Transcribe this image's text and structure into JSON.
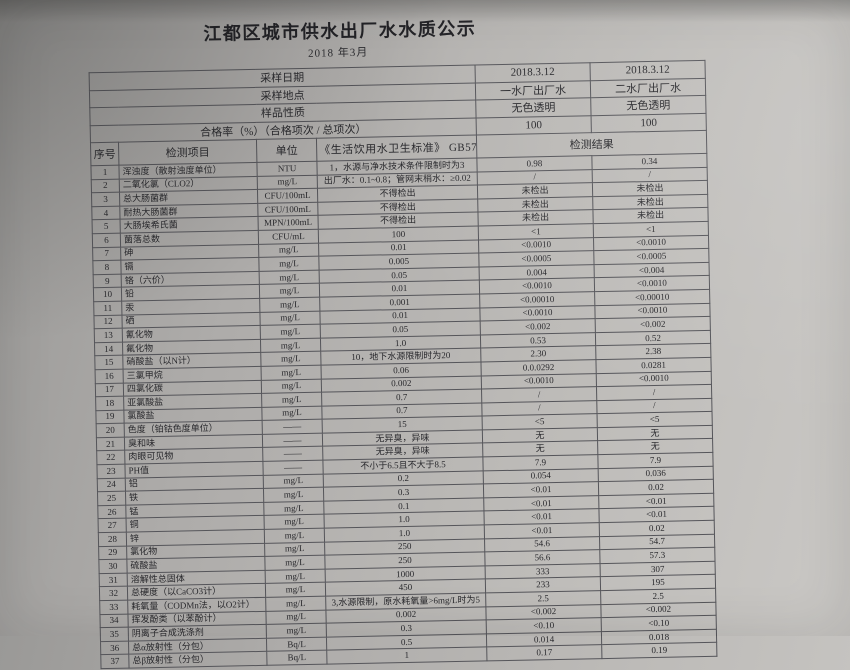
{
  "title": "江都区城市供水出厂水水质公示",
  "subtitle": "2018 年3月",
  "meta_rows": [
    {
      "label": "采样日期",
      "values": [
        "2018.3.12",
        "2018.3.12"
      ]
    },
    {
      "label": "采样地点",
      "values": [
        "一水厂出厂水",
        "二水厂出厂水"
      ]
    },
    {
      "label": "样品性质",
      "values": [
        "无色透明",
        "无色透明"
      ]
    },
    {
      "label": "合格率（%）（合格项次 / 总项次）",
      "values": [
        "100",
        "100"
      ]
    }
  ],
  "columns": {
    "no": "序号",
    "item": "检测项目",
    "unit": "单位",
    "standard": "《生活饮用水卫生标准》 GB5749",
    "result": "检测结果"
  },
  "rows": [
    {
      "no": "1",
      "item": "浑浊度（散射浊度单位）",
      "unit": "NTU",
      "standard": "1，水源与净水技术条件限制时为3",
      "r1": "0.98",
      "r2": "0.34"
    },
    {
      "no": "2",
      "item": "二氧化氯（CLO2）",
      "unit": "mg/L",
      "standard": "出厂水：0.1~0.8；管网末梢水：≥0.02",
      "r1": "/",
      "r2": "/"
    },
    {
      "no": "3",
      "item": "总大肠菌群",
      "unit": "CFU/100mL",
      "standard": "不得检出",
      "r1": "未检出",
      "r2": "未检出"
    },
    {
      "no": "4",
      "item": "耐热大肠菌群",
      "unit": "CFU/100mL",
      "standard": "不得检出",
      "r1": "未检出",
      "r2": "未检出"
    },
    {
      "no": "5",
      "item": "大肠埃希氏菌",
      "unit": "MPN/100mL",
      "standard": "不得检出",
      "r1": "未检出",
      "r2": "未检出"
    },
    {
      "no": "6",
      "item": "菌落总数",
      "unit": "CFU/mL",
      "standard": "100",
      "r1": "<1",
      "r2": "<1"
    },
    {
      "no": "7",
      "item": "砷",
      "unit": "mg/L",
      "standard": "0.01",
      "r1": "<0.0010",
      "r2": "<0.0010"
    },
    {
      "no": "8",
      "item": "镉",
      "unit": "mg/L",
      "standard": "0.005",
      "r1": "<0.0005",
      "r2": "<0.0005"
    },
    {
      "no": "9",
      "item": "铬（六价）",
      "unit": "mg/L",
      "standard": "0.05",
      "r1": "0.004",
      "r2": "<0.004"
    },
    {
      "no": "10",
      "item": "铅",
      "unit": "mg/L",
      "standard": "0.01",
      "r1": "<0.0010",
      "r2": "<0.0010"
    },
    {
      "no": "11",
      "item": "汞",
      "unit": "mg/L",
      "standard": "0.001",
      "r1": "<0.00010",
      "r2": "<0.00010"
    },
    {
      "no": "12",
      "item": "硒",
      "unit": "mg/L",
      "standard": "0.01",
      "r1": "<0.0010",
      "r2": "<0.0010"
    },
    {
      "no": "13",
      "item": "氰化物",
      "unit": "mg/L",
      "standard": "0.05",
      "r1": "<0.002",
      "r2": "<0.002"
    },
    {
      "no": "14",
      "item": "氟化物",
      "unit": "mg/L",
      "standard": "1.0",
      "r1": "0.53",
      "r2": "0.52"
    },
    {
      "no": "15",
      "item": "硝酸盐（以N计）",
      "unit": "mg/L",
      "standard": "10，地下水源限制时为20",
      "r1": "2.30",
      "r2": "2.38"
    },
    {
      "no": "16",
      "item": "三氯甲烷",
      "unit": "mg/L",
      "standard": "0.06",
      "r1": "0.0.0292",
      "r2": "0.0281"
    },
    {
      "no": "17",
      "item": "四氯化碳",
      "unit": "mg/L",
      "standard": "0.002",
      "r1": "<0.0010",
      "r2": "<0.0010"
    },
    {
      "no": "18",
      "item": "亚氯酸盐",
      "unit": "mg/L",
      "standard": "0.7",
      "r1": "/",
      "r2": "/"
    },
    {
      "no": "19",
      "item": "氯酸盐",
      "unit": "mg/L",
      "standard": "0.7",
      "r1": "/",
      "r2": "/"
    },
    {
      "no": "20",
      "item": "色度（铂钴色度单位）",
      "unit": "——",
      "standard": "15",
      "r1": "<5",
      "r2": "<5"
    },
    {
      "no": "21",
      "item": "臭和味",
      "unit": "——",
      "standard": "无异臭，异味",
      "r1": "无",
      "r2": "无"
    },
    {
      "no": "22",
      "item": "肉眼可见物",
      "unit": "——",
      "standard": "无异臭，异味",
      "r1": "无",
      "r2": "无"
    },
    {
      "no": "23",
      "item": "PH值",
      "unit": "——",
      "standard": "不小于6.5且不大于8.5",
      "r1": "7.9",
      "r2": "7.9"
    },
    {
      "no": "24",
      "item": "铝",
      "unit": "mg/L",
      "standard": "0.2",
      "r1": "0.054",
      "r2": "0.036"
    },
    {
      "no": "25",
      "item": "铁",
      "unit": "mg/L",
      "standard": "0.3",
      "r1": "<0.01",
      "r2": "0.02"
    },
    {
      "no": "26",
      "item": "锰",
      "unit": "mg/L",
      "standard": "0.1",
      "r1": "<0.01",
      "r2": "<0.01"
    },
    {
      "no": "27",
      "item": "铜",
      "unit": "mg/L",
      "standard": "1.0",
      "r1": "<0.01",
      "r2": "<0.01"
    },
    {
      "no": "28",
      "item": "锌",
      "unit": "mg/L",
      "standard": "1.0",
      "r1": "<0.01",
      "r2": "0.02"
    },
    {
      "no": "29",
      "item": "氯化物",
      "unit": "mg/L",
      "standard": "250",
      "r1": "54.6",
      "r2": "54.7"
    },
    {
      "no": "30",
      "item": "硫酸盐",
      "unit": "mg/L",
      "standard": "250",
      "r1": "56.6",
      "r2": "57.3"
    },
    {
      "no": "31",
      "item": "溶解性总固体",
      "unit": "mg/L",
      "standard": "1000",
      "r1": "333",
      "r2": "307"
    },
    {
      "no": "32",
      "item": "总硬度（以CaCO3计）",
      "unit": "mg/L",
      "standard": "450",
      "r1": "233",
      "r2": "195"
    },
    {
      "no": "33",
      "item": "耗氧量（CODMn法，以O2计）",
      "unit": "mg/L",
      "standard": "3,水源限制，原水耗氧量>6mg/L时为5",
      "r1": "2.5",
      "r2": "2.5"
    },
    {
      "no": "34",
      "item": "挥发酚类（以苯酚计）",
      "unit": "mg/L",
      "standard": "0.002",
      "r1": "<0.002",
      "r2": "<0.002"
    },
    {
      "no": "35",
      "item": "阴离子合成洗涤剂",
      "unit": "mg/L",
      "standard": "0.3",
      "r1": "<0.10",
      "r2": "<0.10"
    },
    {
      "no": "36",
      "item": "总α放射性（分包）",
      "unit": "Bq/L",
      "standard": "0.5",
      "r1": "0.014",
      "r2": "0.018"
    },
    {
      "no": "37",
      "item": "总β放射性（分包）",
      "unit": "Bq/L",
      "standard": "1",
      "r1": "0.17",
      "r2": "0.19"
    }
  ]
}
